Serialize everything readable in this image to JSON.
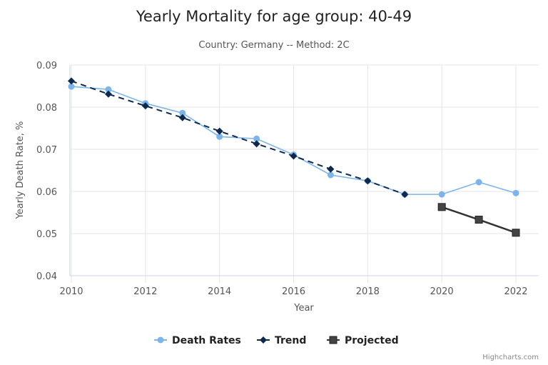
{
  "chart_data": {
    "type": "line",
    "title": "Yearly Mortality for age group: 40-49",
    "subtitle": "Country: Germany -- Method: 2C",
    "xlabel": "Year",
    "ylabel": "Yearly Death Rate, %",
    "xlim": [
      2010,
      2022
    ],
    "ylim": [
      0.04,
      0.09
    ],
    "x_ticks": [
      "2010",
      "2012",
      "2014",
      "2016",
      "2018",
      "2020",
      "2022"
    ],
    "y_ticks": [
      "0.04",
      "0.05",
      "0.06",
      "0.07",
      "0.08",
      "0.09"
    ],
    "grid": true,
    "legend_position": "bottom-center",
    "series": [
      {
        "name": "Death Rates",
        "color": "#7cb5ec",
        "marker": "circle",
        "dash": "solid",
        "x": [
          2010,
          2011,
          2012,
          2013,
          2014,
          2015,
          2016,
          2017,
          2018,
          2019,
          2020,
          2021,
          2022
        ],
        "values": [
          0.0849,
          0.0842,
          0.0809,
          0.0786,
          0.073,
          0.0725,
          0.0687,
          0.0639,
          0.0625,
          0.0593,
          0.0593,
          0.0622,
          0.0596
        ]
      },
      {
        "name": "Trend",
        "color": "#0d2a4e",
        "marker": "diamond",
        "dash": "dashed",
        "x": [
          2010,
          2011,
          2012,
          2013,
          2014,
          2015,
          2016,
          2017,
          2018,
          2019
        ],
        "values": [
          0.0862,
          0.0831,
          0.0803,
          0.0775,
          0.0743,
          0.0713,
          0.0684,
          0.0653,
          0.0625,
          0.0593
        ]
      },
      {
        "name": "Projected",
        "color": "#333333",
        "marker": "square",
        "dash": "solid",
        "x": [
          2020,
          2021,
          2022
        ],
        "values": [
          0.0563,
          0.0533,
          0.0502
        ]
      }
    ]
  },
  "credits": "Highcharts.com"
}
